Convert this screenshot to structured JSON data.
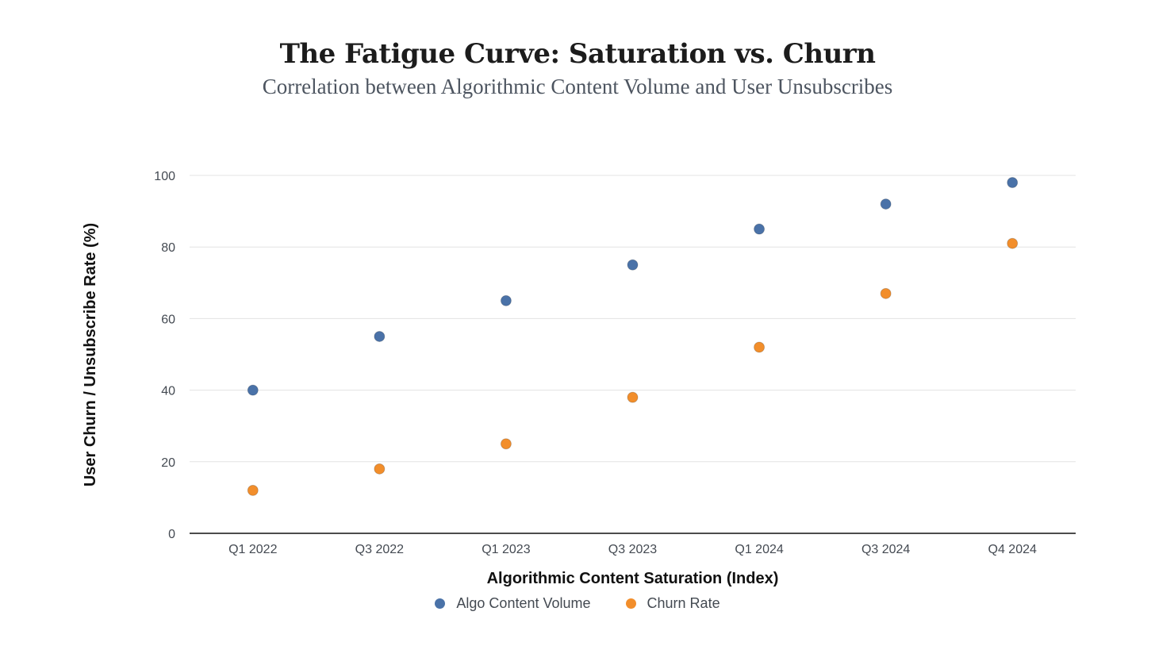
{
  "chart_data": {
    "type": "scatter",
    "title": "The Fatigue Curve: Saturation vs. Churn",
    "subtitle": "Correlation between Algorithmic Content Volume and User Unsubscribes",
    "xlabel": "Algorithmic Content Saturation (Index)",
    "ylabel": "User Churn / Unsubscribe Rate (%)",
    "categories": [
      "Q1 2022",
      "Q3 2022",
      "Q1 2023",
      "Q3 2023",
      "Q1 2024",
      "Q3 2024",
      "Q4 2024"
    ],
    "ylim": [
      0,
      100
    ],
    "yticks": [
      0,
      20,
      40,
      60,
      80,
      100
    ],
    "grid": true,
    "legend_position": "bottom",
    "series": [
      {
        "name": "Algo Content Volume",
        "color": "#4a72a8",
        "values": [
          40,
          55,
          65,
          75,
          85,
          92,
          98
        ]
      },
      {
        "name": "Churn Rate",
        "color": "#f28e2b",
        "values": [
          12,
          18,
          25,
          38,
          52,
          67,
          81
        ]
      }
    ]
  }
}
